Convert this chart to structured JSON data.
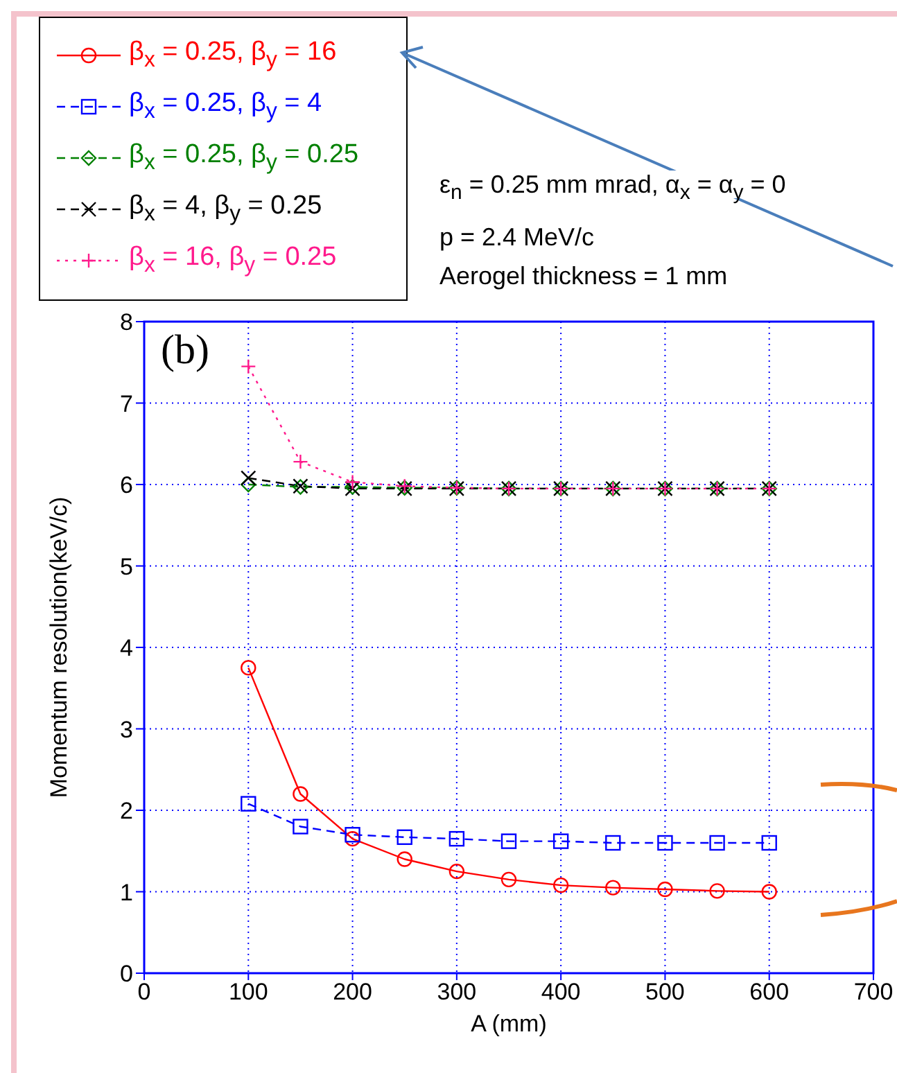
{
  "chart_data": {
    "type": "line",
    "xlabel": "A (mm)",
    "ylabel": "Momentum resolution(keV/c)",
    "x": [
      100,
      150,
      200,
      250,
      300,
      350,
      400,
      450,
      500,
      550,
      600
    ],
    "xlim": [
      0,
      700
    ],
    "xticks": [
      0,
      100,
      200,
      300,
      400,
      500,
      600,
      700
    ],
    "ylim": [
      0,
      8
    ],
    "yticks": [
      0,
      1,
      2,
      3,
      4,
      5,
      6,
      7,
      8
    ],
    "grid": true,
    "legend": "top left",
    "annotations": [
      "(b)",
      "ε$_{n}$ = 0.25 mm mrad, α$_{x}$ = α$_{y}$ = 0",
      "p = 2.4 MeV/c",
      "Aerogel thickness = 1 mm"
    ],
    "series": [
      {
        "name": "β$_{x}$ = 0.25, β$_{y}$ = 16",
        "color": "#ff0000",
        "marker": "circle",
        "line_style": "solid",
        "values": [
          3.75,
          2.2,
          1.65,
          1.4,
          1.25,
          1.15,
          1.08,
          1.05,
          1.03,
          1.01,
          1.0
        ]
      },
      {
        "name": "β$_{x}$ = 0.25, β$_{y}$ = 4",
        "color": "#0000ff",
        "marker": "square",
        "line_style": "dashed",
        "values": [
          2.08,
          1.8,
          1.7,
          1.67,
          1.65,
          1.62,
          1.62,
          1.6,
          1.6,
          1.6,
          1.6
        ]
      },
      {
        "name": "β$_{x}$ = 0.25, β$_{y}$ = 0.25",
        "color": "#008000",
        "marker": "diamond",
        "line_style": "dashed",
        "values": [
          6.0,
          5.97,
          5.97,
          5.96,
          5.96,
          5.95,
          5.95,
          5.95,
          5.95,
          5.95,
          5.95
        ]
      },
      {
        "name": "β$_{x}$ = 4, β$_{y}$ = 0.25",
        "color": "#000000",
        "marker": "cross",
        "line_style": "dashed",
        "values": [
          6.08,
          5.98,
          5.95,
          5.95,
          5.95,
          5.95,
          5.95,
          5.95,
          5.95,
          5.95,
          5.95
        ]
      },
      {
        "name": "β$_{x}$ = 16, β$_{y}$ = 0.25",
        "color": "#ff1a8c",
        "marker": "plus",
        "line_style": "dotted",
        "values": [
          7.45,
          6.28,
          6.03,
          5.98,
          5.96,
          5.95,
          5.95,
          5.95,
          5.95,
          5.95,
          5.95
        ]
      }
    ]
  }
}
